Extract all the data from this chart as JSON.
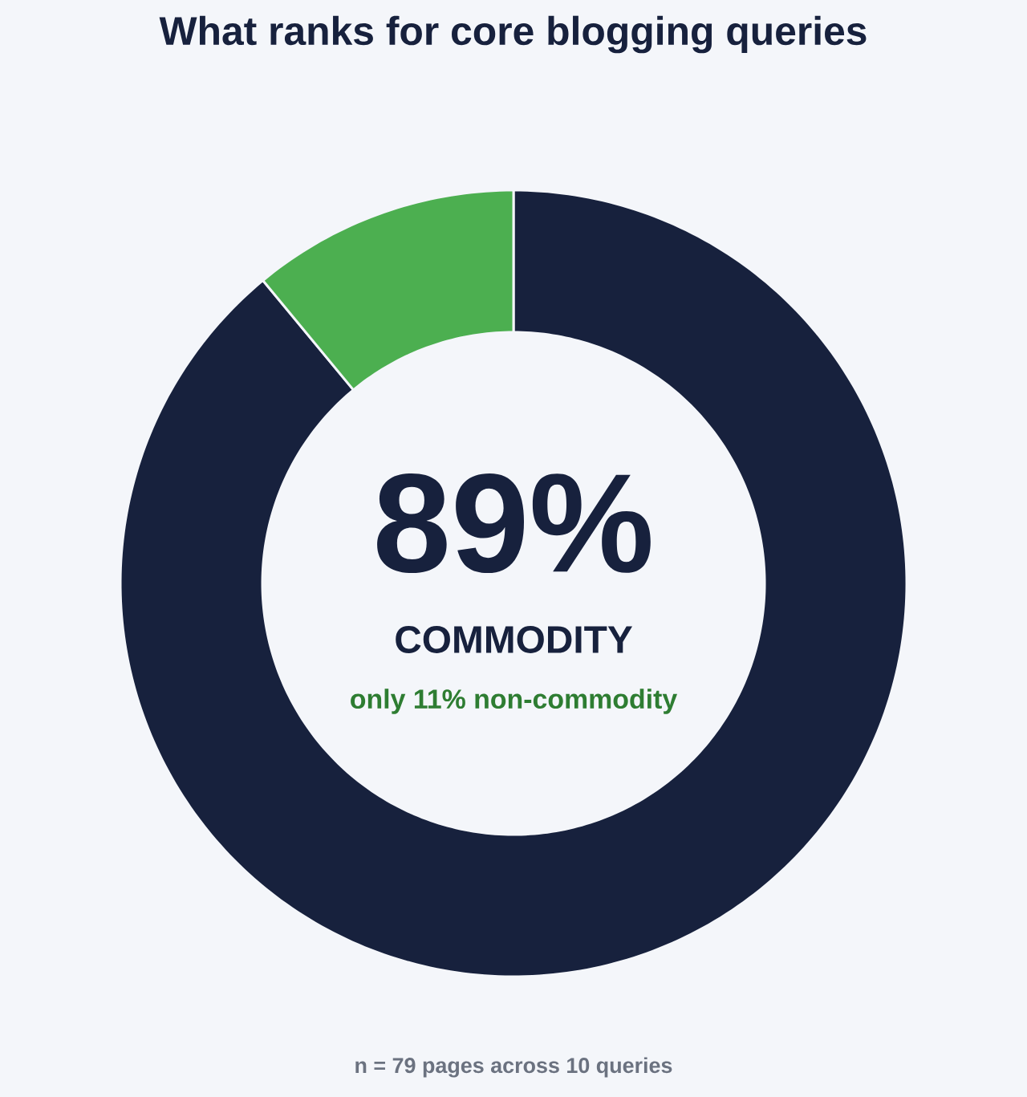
{
  "chart_data": {
    "type": "donut",
    "title": "What ranks for core blogging queries",
    "categories": [
      null,
      null
    ],
    "values": [
      89,
      11
    ],
    "colors": [
      "#17213d",
      "#4caf50"
    ],
    "annotations": [
      "89%",
      "COMMODITY",
      "only 11% non-commodity",
      "n = 79 pages across 10 queries"
    ]
  }
}
